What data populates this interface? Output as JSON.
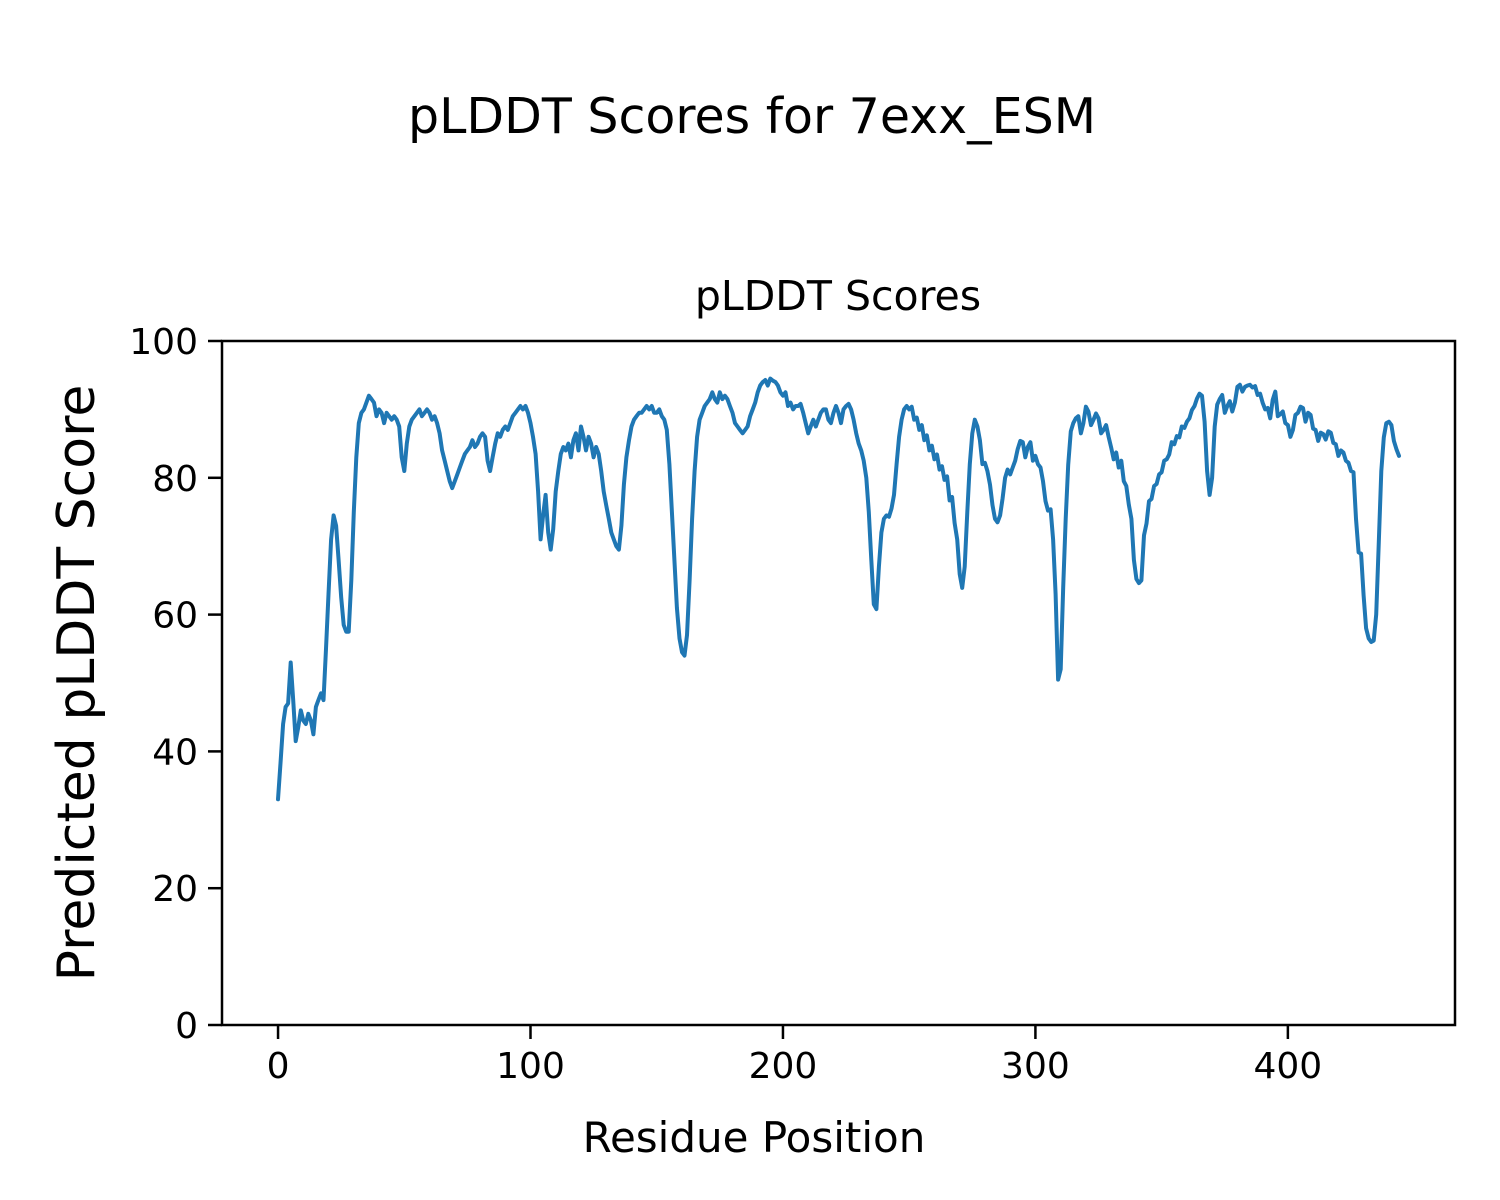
{
  "figure": {
    "suptitle": "pLDDT Scores for 7exx_ESM",
    "axes_title": "pLDDT Scores",
    "xlabel": "Residue Position",
    "ylabel": "Predicted pLDDT Score"
  },
  "chart_data": {
    "type": "line",
    "title": "pLDDT Scores",
    "xlabel": "Residue Position",
    "ylabel": "Predicted pLDDT Score",
    "grid": false,
    "legend": null,
    "line_color": "#1f77b4",
    "line_width": 4,
    "x_start": 0,
    "x_step": 1,
    "xlim": [
      -22.2,
      466.2
    ],
    "ylim": [
      0,
      100
    ],
    "x_ticks": [
      0,
      100,
      200,
      300,
      400
    ],
    "y_ticks": [
      0,
      20,
      40,
      60,
      80,
      100
    ],
    "values": [
      33,
      38.5,
      44,
      46.5,
      47,
      53,
      47.5,
      41.5,
      43.5,
      46,
      44.5,
      44,
      45.5,
      44.5,
      42.5,
      46.5,
      47.5,
      48.5,
      47.5,
      55,
      63,
      71,
      74.5,
      73,
      68,
      62.5,
      58.5,
      57.5,
      57.5,
      65,
      75,
      83,
      88,
      89.5,
      90,
      91,
      92,
      91.5,
      91,
      89,
      90,
      89.5,
      88,
      89.5,
      89,
      88.5,
      89,
      88.5,
      87.5,
      83,
      81,
      85,
      87.5,
      88.5,
      89,
      89.5,
      90,
      89,
      89.5,
      90,
      89.5,
      88.5,
      89,
      88,
      86.5,
      84,
      82.5,
      81,
      79.5,
      78.5,
      79.5,
      80.5,
      81.5,
      82.5,
      83.5,
      84,
      84.5,
      85.5,
      84.5,
      85,
      86,
      86.5,
      86,
      82.5,
      81,
      83,
      85,
      86.5,
      86,
      87,
      87.5,
      87,
      88,
      89,
      89.5,
      90,
      90.5,
      90,
      90.5,
      89.5,
      88,
      86,
      83.5,
      78,
      71,
      74.5,
      77.5,
      72,
      69.5,
      72.5,
      78,
      81,
      83.5,
      84.5,
      84,
      85,
      83,
      85.5,
      86.5,
      84,
      87.5,
      86,
      84,
      86,
      85,
      83,
      84.5,
      83.5,
      81,
      78,
      76,
      74,
      72,
      71,
      70,
      69.5,
      73,
      79,
      83,
      85.5,
      87.5,
      88.5,
      89,
      89.5,
      89.5,
      90,
      90.5,
      90,
      90.5,
      89.5,
      89.5,
      90,
      89,
      88.5,
      87,
      82,
      75,
      68,
      61,
      56.5,
      54.5,
      54,
      57,
      65,
      74,
      81,
      86,
      88.5,
      89.5,
      90.5,
      91,
      91.5,
      92.5,
      91.5,
      91,
      92.5,
      91.5,
      92,
      91.5,
      90.5,
      89.5,
      88,
      87.5,
      87,
      86.5,
      87,
      87.5,
      89,
      90,
      91,
      92.5,
      93.5,
      94,
      94.3,
      93.5,
      94.5,
      94.2,
      94,
      93.5,
      92.5,
      92,
      92.5,
      90.5,
      91,
      90,
      90.5,
      90.5,
      90.8,
      89.5,
      88,
      86.5,
      87.5,
      88.5,
      87.5,
      88.5,
      89.5,
      90,
      90,
      88.5,
      88,
      89.5,
      90.5,
      89.5,
      88,
      90,
      90.5,
      90.8,
      90,
      88.5,
      86.5,
      85,
      84,
      82.5,
      80,
      75,
      68,
      61.5,
      60.8,
      67,
      72,
      74,
      74.5,
      74.3,
      75.5,
      77.5,
      82,
      86,
      88.5,
      90,
      90.5,
      90,
      90.4,
      88.5,
      88.8,
      87,
      87.7,
      85.5,
      86.2,
      84,
      84.7,
      82.7,
      83.4,
      81.2,
      81.7,
      79.7,
      80.2,
      76.7,
      77.2,
      73.4,
      71,
      65.9,
      63.9,
      67,
      75,
      82,
      86.5,
      88.5,
      87.5,
      85.5,
      82,
      82.2,
      81,
      79,
      76,
      74,
      73.5,
      74.5,
      77,
      80,
      81.2,
      80.5,
      81.5,
      82.5,
      84.2,
      85.4,
      85.2,
      83,
      84.5,
      85.2,
      82.5,
      83.2,
      82,
      81.5,
      79.5,
      76.6,
      75.2,
      75.4,
      71,
      63,
      50.5,
      52,
      64,
      74,
      81.9,
      86.8,
      88,
      88.7,
      89,
      86.5,
      88,
      90.4,
      89.7,
      87.7,
      88.5,
      89.4,
      88.7,
      86.5,
      87,
      87.7,
      86,
      84.4,
      82.7,
      83.7,
      81.5,
      82.5,
      79.5,
      78.8,
      76.1,
      74,
      68,
      65.2,
      64.6,
      65,
      71.6,
      73.3,
      76.6,
      76.9,
      78.8,
      79.1,
      80.5,
      80.8,
      82.5,
      82.7,
      83.4,
      85.2,
      84.9,
      86.1,
      85.9,
      87.5,
      87.3,
      88.2,
      88.7,
      89.9,
      90.5,
      91.6,
      92.3,
      92,
      88.2,
      81,
      77.5,
      80,
      87.5,
      90.7,
      91.5,
      92.1,
      89.5,
      90.5,
      91.2,
      89.7,
      91,
      93.3,
      93.6,
      92.6,
      93.3,
      93.5,
      93.6,
      93.2,
      93.4,
      92.1,
      92.3,
      91,
      90,
      90.2,
      88.7,
      91.4,
      92.6,
      89,
      89.3,
      89.7,
      88,
      87.7,
      86,
      87,
      89.2,
      89.5,
      90.4,
      90.2,
      88.2,
      89.5,
      89.2,
      87.2,
      87,
      85.4,
      86.6,
      86.4,
      85.6,
      86.8,
      86.6,
      85.1,
      84.9,
      83.2,
      84,
      83.7,
      82.5,
      82.2,
      81,
      80.8,
      74,
      69.1,
      68.9,
      62.8,
      58,
      56.5,
      56,
      56.2,
      60,
      70.6,
      81,
      85.9,
      88,
      88.2,
      87.7,
      85.4,
      84.2,
      83.2
    ]
  }
}
